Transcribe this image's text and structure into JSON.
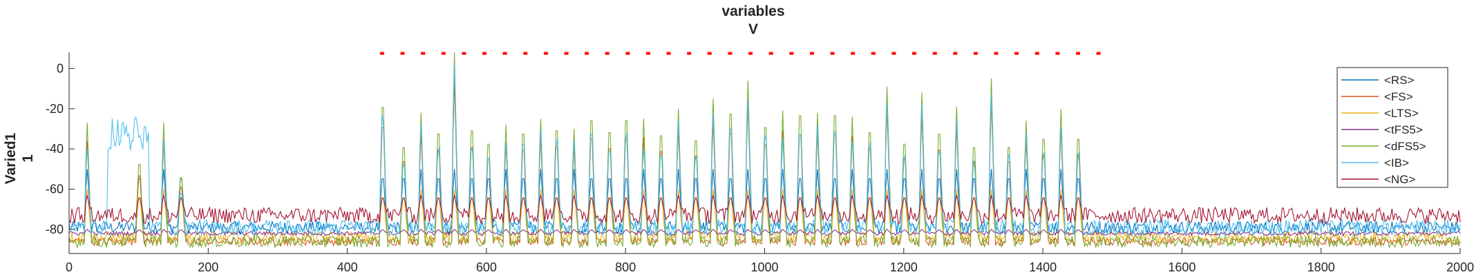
{
  "chart_data": {
    "type": "line",
    "title": "variables",
    "subtitle": "V",
    "xlabel": "",
    "ylabel": "Varied1",
    "ylabel2": "1",
    "xlim": [
      0,
      2000
    ],
    "ylim": [
      -92,
      8
    ],
    "xticks": [
      "0",
      "200",
      "400",
      "600",
      "800",
      "1000",
      "1200",
      "1400",
      "1600",
      "1800",
      "2000"
    ],
    "yticks": [
      "0",
      "-20",
      "-40",
      "-60",
      "-80"
    ],
    "xtick_values": [
      0,
      200,
      400,
      600,
      800,
      1000,
      1200,
      1400,
      1600,
      1800,
      2000
    ],
    "ytick_values": [
      0,
      -20,
      -40,
      -60,
      -80
    ],
    "grid": false,
    "legend_position": "top-right",
    "marker_row": {
      "color": "#ff0000",
      "y": 7.5,
      "x_start": 450,
      "x_end": 1480,
      "count": 36
    },
    "series": [
      {
        "name": "<RS>",
        "color": "#0072bd",
        "baseline": -79,
        "spike_to": -50,
        "noise": 3
      },
      {
        "name": "<FS>",
        "color": "#d95319",
        "baseline": -86,
        "spike_to": -70,
        "noise": 2
      },
      {
        "name": "<LTS>",
        "color": "#edb120",
        "baseline": -84,
        "spike_to": -60,
        "noise": 3
      },
      {
        "name": "<tFS5>",
        "color": "#7e2f8e",
        "baseline": -82,
        "spike_to": -80,
        "noise": 1
      },
      {
        "name": "<dFS5>",
        "color": "#77ac30",
        "baseline": -86,
        "spike_to": 5,
        "noise": 3
      },
      {
        "name": "<IB>",
        "color": "#4dbeee",
        "baseline": -79,
        "spike_to": -40,
        "noise": 4
      },
      {
        "name": "<NG>",
        "color": "#a2142f",
        "baseline": -73,
        "spike_to": -63,
        "noise": 4
      }
    ],
    "spike_peaks": [
      {
        "x": 25,
        "y": -27
      },
      {
        "x": 100,
        "y": -40
      },
      {
        "x": 135,
        "y": -27
      },
      {
        "x": 160,
        "y": -48
      },
      {
        "x": 450,
        "y": -6
      },
      {
        "x": 480,
        "y": -30
      },
      {
        "x": 505,
        "y": -22
      },
      {
        "x": 530,
        "y": -22
      },
      {
        "x": 553,
        "y": 8
      },
      {
        "x": 578,
        "y": -20
      },
      {
        "x": 602,
        "y": -28
      },
      {
        "x": 627,
        "y": -28
      },
      {
        "x": 652,
        "y": -22
      },
      {
        "x": 677,
        "y": -25
      },
      {
        "x": 700,
        "y": -20
      },
      {
        "x": 725,
        "y": -30
      },
      {
        "x": 750,
        "y": -14
      },
      {
        "x": 776,
        "y": -21
      },
      {
        "x": 800,
        "y": -14
      },
      {
        "x": 825,
        "y": -25
      },
      {
        "x": 850,
        "y": -23
      },
      {
        "x": 875,
        "y": -20
      },
      {
        "x": 900,
        "y": -26
      },
      {
        "x": 925,
        "y": -15
      },
      {
        "x": 950,
        "y": -10
      },
      {
        "x": 975,
        "y": -6
      },
      {
        "x": 1000,
        "y": -18
      },
      {
        "x": 1025,
        "y": -21
      },
      {
        "x": 1050,
        "y": -11
      },
      {
        "x": 1075,
        "y": -22
      },
      {
        "x": 1100,
        "y": -11
      },
      {
        "x": 1125,
        "y": -24
      },
      {
        "x": 1150,
        "y": -21
      },
      {
        "x": 1175,
        "y": -9
      },
      {
        "x": 1200,
        "y": -28
      },
      {
        "x": 1225,
        "y": -12
      },
      {
        "x": 1250,
        "y": -22
      },
      {
        "x": 1275,
        "y": -19
      },
      {
        "x": 1300,
        "y": -30
      },
      {
        "x": 1325,
        "y": -5
      },
      {
        "x": 1350,
        "y": -30
      },
      {
        "x": 1375,
        "y": -26
      },
      {
        "x": 1400,
        "y": -25
      },
      {
        "x": 1425,
        "y": -20
      },
      {
        "x": 1450,
        "y": -25
      }
    ]
  }
}
